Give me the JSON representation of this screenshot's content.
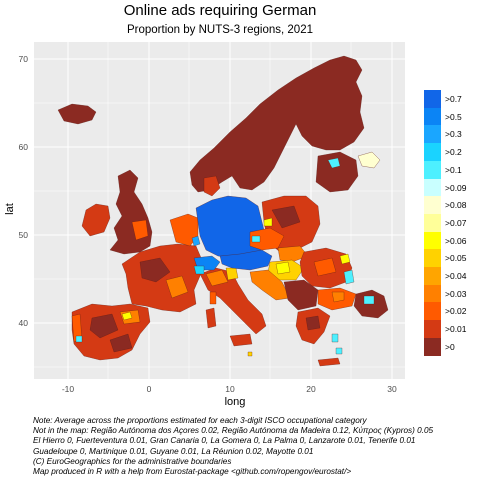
{
  "title": "Online ads requiring German",
  "subtitle": "Proportion by NUTS-3 regions, 2021",
  "axes": {
    "x_label": "long",
    "y_label": "lat",
    "x_ticks": [
      "-10",
      "0",
      "10",
      "20",
      "30"
    ],
    "y_ticks": [
      "70",
      "60",
      "50",
      "40"
    ]
  },
  "map": {
    "projection": "lon/lat",
    "xlim": [
      -14,
      32
    ],
    "ylim": [
      33,
      72
    ],
    "grid": true,
    "panel_color": "#ebebeb",
    "dominant_colors": {
      "germany_austria_core": "#1166e8",
      "scandinavia_baltic_uk": "#8b2a22",
      "periphery_mix": "#d43a14"
    }
  },
  "legend": {
    "position": "right",
    "items": [
      {
        "label": ">0.7",
        "color": "#1166e8"
      },
      {
        "label": ">0.5",
        "color": "#0b84f5"
      },
      {
        "label": ">0.3",
        "color": "#1aa6ff"
      },
      {
        "label": ">0.2",
        "color": "#1ad3ff"
      },
      {
        "label": ">0.1",
        "color": "#4df0ff"
      },
      {
        "label": ">0.09",
        "color": "#c9ffff"
      },
      {
        "label": ">0.08",
        "color": "#ffffd0"
      },
      {
        "label": ">0.07",
        "color": "#ffff99"
      },
      {
        "label": ">0.06",
        "color": "#ffff00"
      },
      {
        "label": ">0.05",
        "color": "#ffd200"
      },
      {
        "label": ">0.04",
        "color": "#ffa500"
      },
      {
        "label": ">0.03",
        "color": "#ff8000"
      },
      {
        "label": ">0.02",
        "color": "#ff5a00"
      },
      {
        "label": ">0.01",
        "color": "#d43a14"
      },
      {
        "label": ">0",
        "color": "#8b2a22"
      }
    ]
  },
  "notes": [
    "Note: Average across the proportions estimated for each 3-digit ISCO occupational category",
    "Not in the map:  Região Autónoma dos Açores 0.02, Região Autónoma da Madeira 0.12, Κύπρος (Kypros) 0.05",
    " El Hierro 0, Fuerteventura 0.01, Gran Canaria 0, La Gomera 0, La Palma 0, Lanzarote 0.01, Tenerife 0.01",
    " Guadeloupe 0, Martinique 0.01, Guyane 0.01, La Réunion 0.02, Mayotte 0.01",
    "(C) EuroGeographics for the administrative boundaries",
    " Map produced in R with a help from Eurostat-package <github.com/ropengov/eurostat/>"
  ]
}
